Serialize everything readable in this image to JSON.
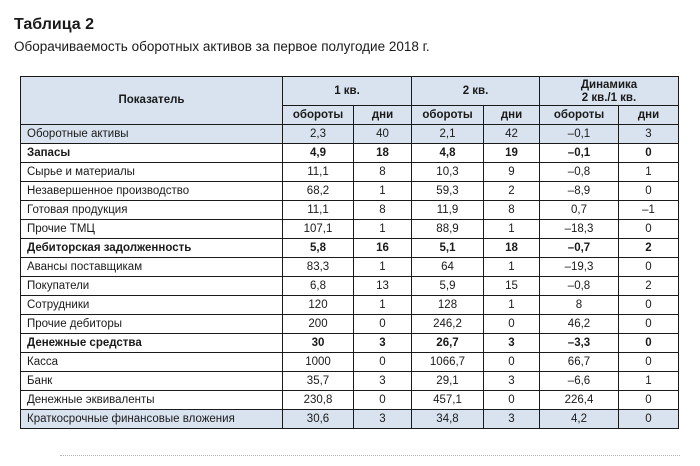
{
  "caption": {
    "number": "Таблица 2",
    "title": "Оборачиваемость оборотных активов за первое полугодие 2018 г."
  },
  "table": {
    "header": {
      "indicator": "Показатель",
      "q1": "1 кв.",
      "q2": "2 кв.",
      "dynamics_line1": "Динамика",
      "dynamics_line2": "2 кв./1 кв.",
      "turnover": "обороты",
      "days": "дни"
    },
    "rows": [
      {
        "name": "Оборотные активы",
        "q1_turnover": "2,3",
        "q1_days": "40",
        "q2_turnover": "2,1",
        "q2_days": "42",
        "dyn_turnover": "–0,1",
        "dyn_days": "3",
        "bold": false,
        "shaded": true
      },
      {
        "name": "Запасы",
        "q1_turnover": "4,9",
        "q1_days": "18",
        "q2_turnover": "4,8",
        "q2_days": "19",
        "dyn_turnover": "–0,1",
        "dyn_days": "0",
        "bold": true,
        "shaded": false
      },
      {
        "name": "Сырье и материалы",
        "q1_turnover": "11,1",
        "q1_days": "8",
        "q2_turnover": "10,3",
        "q2_days": "9",
        "dyn_turnover": "–0,8",
        "dyn_days": "1",
        "bold": false,
        "shaded": false
      },
      {
        "name": "Незавершенное производство",
        "q1_turnover": "68,2",
        "q1_days": "1",
        "q2_turnover": "59,3",
        "q2_days": "2",
        "dyn_turnover": "–8,9",
        "dyn_days": "0",
        "bold": false,
        "shaded": false
      },
      {
        "name": "Готовая продукция",
        "q1_turnover": "11,1",
        "q1_days": "8",
        "q2_turnover": "11,9",
        "q2_days": "8",
        "dyn_turnover": "0,7",
        "dyn_days": "–1",
        "bold": false,
        "shaded": false
      },
      {
        "name": "Прочие ТМЦ",
        "q1_turnover": "107,1",
        "q1_days": "1",
        "q2_turnover": "88,9",
        "q2_days": "1",
        "dyn_turnover": "–18,3",
        "dyn_days": "0",
        "bold": false,
        "shaded": false
      },
      {
        "name": "Дебиторская задолженность",
        "q1_turnover": "5,8",
        "q1_days": "16",
        "q2_turnover": "5,1",
        "q2_days": "18",
        "dyn_turnover": "–0,7",
        "dyn_days": "2",
        "bold": true,
        "shaded": false
      },
      {
        "name": "Авансы поставщикам",
        "q1_turnover": "83,3",
        "q1_days": "1",
        "q2_turnover": "64",
        "q2_days": "1",
        "dyn_turnover": "–19,3",
        "dyn_days": "0",
        "bold": false,
        "shaded": false
      },
      {
        "name": "Покупатели",
        "q1_turnover": "6,8",
        "q1_days": "13",
        "q2_turnover": "5,9",
        "q2_days": "15",
        "dyn_turnover": "–0,8",
        "dyn_days": "2",
        "bold": false,
        "shaded": false
      },
      {
        "name": "Сотрудники",
        "q1_turnover": "120",
        "q1_days": "1",
        "q2_turnover": "128",
        "q2_days": "1",
        "dyn_turnover": "8",
        "dyn_days": "0",
        "bold": false,
        "shaded": false
      },
      {
        "name": "Прочие дебиторы",
        "q1_turnover": "200",
        "q1_days": "0",
        "q2_turnover": "246,2",
        "q2_days": "0",
        "dyn_turnover": "46,2",
        "dyn_days": "0",
        "bold": false,
        "shaded": false
      },
      {
        "name": "Денежные средства",
        "q1_turnover": "30",
        "q1_days": "3",
        "q2_turnover": "26,7",
        "q2_days": "3",
        "dyn_turnover": "–3,3",
        "dyn_days": "0",
        "bold": true,
        "shaded": false
      },
      {
        "name": "Касса",
        "q1_turnover": "1000",
        "q1_days": "0",
        "q2_turnover": "1066,7",
        "q2_days": "0",
        "dyn_turnover": "66,7",
        "dyn_days": "0",
        "bold": false,
        "shaded": false
      },
      {
        "name": "Банк",
        "q1_turnover": "35,7",
        "q1_days": "3",
        "q2_turnover": "29,1",
        "q2_days": "3",
        "dyn_turnover": "–6,6",
        "dyn_days": "1",
        "bold": false,
        "shaded": false
      },
      {
        "name": "Денежные эквиваленты",
        "q1_turnover": "230,8",
        "q1_days": "0",
        "q2_turnover": "457,1",
        "q2_days": "0",
        "dyn_turnover": "226,4",
        "dyn_days": "0",
        "bold": false,
        "shaded": false
      },
      {
        "name": "Краткосрочные финансовые вложения",
        "q1_turnover": "30,6",
        "q1_days": "3",
        "q2_turnover": "34,8",
        "q2_days": "3",
        "dyn_turnover": "4,2",
        "dyn_days": "0",
        "bold": false,
        "shaded": true
      }
    ]
  },
  "colors": {
    "header_fill": "#d9e3ef",
    "border": "#1a1a1a",
    "text": "#1a1a1a"
  }
}
